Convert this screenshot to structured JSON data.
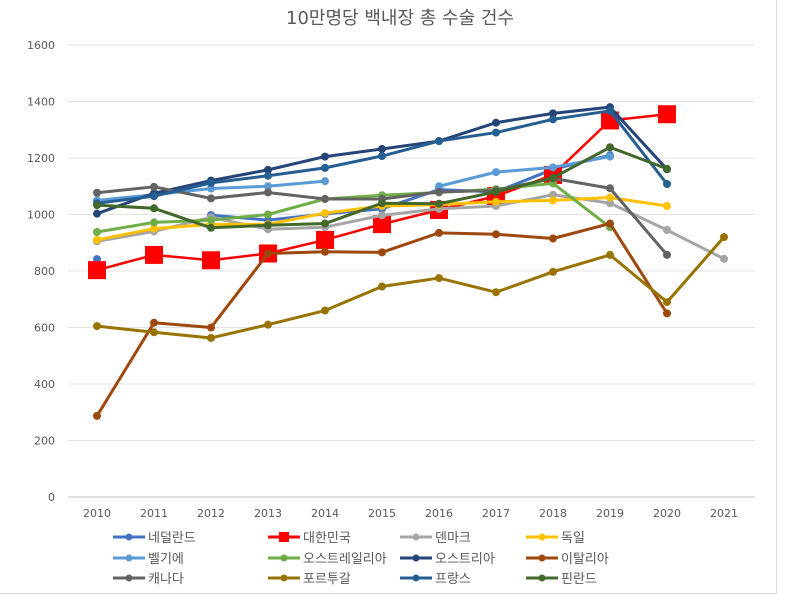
{
  "chart_data": {
    "type": "line",
    "title": "10만명당 백내장 총 수술 건수",
    "xlabel": "",
    "ylabel": "",
    "x": [
      "2010",
      "2011",
      "2012",
      "2013",
      "2014",
      "2015",
      "2016",
      "2017",
      "2018",
      "2019",
      "2020",
      "2021"
    ],
    "ylim": [
      0,
      1600
    ],
    "yticks": [
      0,
      200,
      400,
      600,
      800,
      1000,
      1200,
      1400,
      1600
    ],
    "grid": true,
    "legend_position": "bottom",
    "series": [
      {
        "name": "네덜란드",
        "color": "#4472C4",
        "marker": "circle",
        "values": [
          842,
          null,
          998,
          980,
          1002,
          1020,
          1088,
          1080,
          1160,
          1210,
          null,
          null
        ]
      },
      {
        "name": "대한민국",
        "color": "#FF0000",
        "marker": "square",
        "values": [
          803,
          857,
          838,
          862,
          910,
          966,
          1016,
          1065,
          1140,
          1333,
          1355,
          null
        ]
      },
      {
        "name": "덴마크",
        "color": "#A5A5A5",
        "marker": "circle",
        "values": [
          905,
          940,
          990,
          948,
          955,
          997,
          1020,
          1030,
          1070,
          1040,
          945,
          843
        ]
      },
      {
        "name": "독일",
        "color": "#FFC000",
        "marker": "circle",
        "values": [
          910,
          950,
          965,
          965,
          1005,
          1030,
          1035,
          1045,
          1050,
          1060,
          1030,
          null
        ]
      },
      {
        "name": "벨기에",
        "color": "#5B9BD5",
        "marker": "circle",
        "values": [
          1050,
          1070,
          1092,
          1100,
          1118,
          null,
          1100,
          1150,
          1167,
          1205,
          null,
          null
        ]
      },
      {
        "name": "오스트레일리아",
        "color": "#70AD47",
        "marker": "circle",
        "values": [
          938,
          972,
          980,
          1000,
          1055,
          1068,
          1078,
          1090,
          1110,
          955,
          null,
          null
        ]
      },
      {
        "name": "오스트리아",
        "color": "#264478",
        "marker": "circle",
        "values": [
          1003,
          1075,
          1120,
          1158,
          1205,
          1232,
          1260,
          1325,
          1358,
          1380,
          1160,
          null
        ]
      },
      {
        "name": "이탈리아",
        "color": "#9E480E",
        "marker": "circle",
        "values": [
          287,
          617,
          600,
          862,
          868,
          866,
          935,
          930,
          915,
          968,
          650,
          null
        ]
      },
      {
        "name": "캐나다",
        "color": "#636363",
        "marker": "circle",
        "values": [
          1077,
          1098,
          1057,
          1078,
          1055,
          1055,
          1080,
          1085,
          1128,
          1093,
          857,
          null
        ]
      },
      {
        "name": "포르투갈",
        "color": "#997300",
        "marker": "circle",
        "values": [
          605,
          583,
          563,
          610,
          660,
          745,
          775,
          725,
          797,
          857,
          690,
          920
        ]
      },
      {
        "name": "프랑스",
        "color": "#255E91",
        "marker": "circle",
        "values": [
          1040,
          1065,
          1112,
          1137,
          1165,
          1207,
          1260,
          1290,
          1337,
          1367,
          1108,
          null
        ]
      },
      {
        "name": "핀란드",
        "color": "#43682B",
        "marker": "circle",
        "values": [
          1033,
          1022,
          953,
          962,
          968,
          1040,
          1038,
          1080,
          1130,
          1238,
          1162,
          null
        ]
      }
    ]
  }
}
